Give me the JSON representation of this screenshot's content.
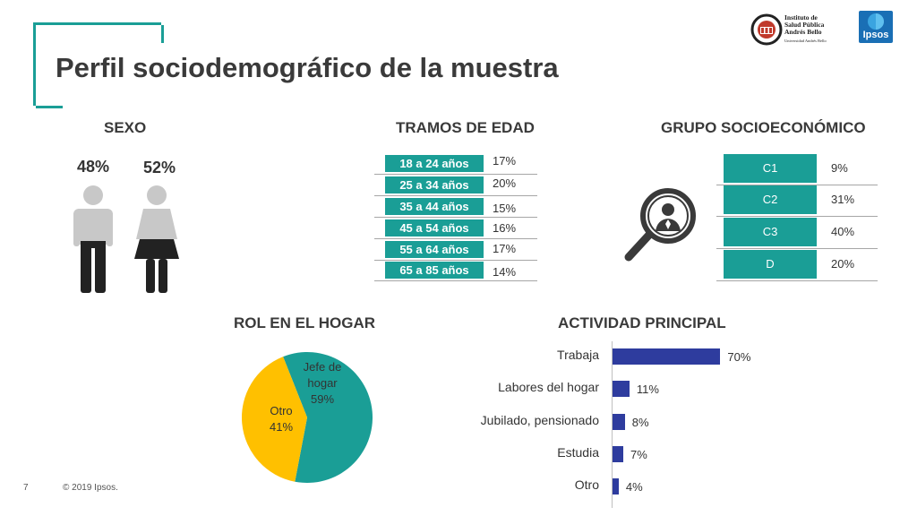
{
  "header": {
    "title": "Perfil sociodemográfico de la muestra",
    "logo_isp_line1": "Instituto de",
    "logo_isp_line2": "Salud Pública",
    "logo_isp_line3": "Andrés Bello",
    "logo_isp_line4": "Universidad Andrés Bello",
    "logo_ipsos": "Ipsos"
  },
  "sexo": {
    "title": "SEXO",
    "male_pct": "48%",
    "female_pct": "52%"
  },
  "edad": {
    "title": "TRAMOS DE EDAD",
    "rows": [
      {
        "label": "18 a 24 años",
        "value": "17%"
      },
      {
        "label": "25 a 34 años",
        "value": "20%"
      },
      {
        "label": "35 a 44 años",
        "value": "15%"
      },
      {
        "label": "45 a 54 años",
        "value": "16%"
      },
      {
        "label": "55 a 64 años",
        "value": "17%"
      },
      {
        "label": "65 a 85 años",
        "value": "14%"
      }
    ]
  },
  "gse": {
    "title": "GRUPO SOCIOECONÓMICO",
    "rows": [
      {
        "label": "C1",
        "value": "9%"
      },
      {
        "label": "C2",
        "value": "31%"
      },
      {
        "label": "C3",
        "value": "40%"
      },
      {
        "label": "D",
        "value": "20%"
      }
    ]
  },
  "rol": {
    "title": "ROL EN EL HOGAR"
  },
  "actividad": {
    "title": "ACTIVIDAD PRINCIPAL"
  },
  "footer": {
    "page_number": "7",
    "copyright": "© 2019 Ipsos."
  },
  "colors": {
    "teal": "#1a9e96",
    "gold": "#ffc000",
    "bar_blue": "#2e3c9e",
    "figure_gray": "#c8c8c8",
    "figure_dark": "#222222"
  },
  "chart_data": [
    {
      "type": "pie",
      "title": "ROL EN EL HOGAR",
      "slices": [
        {
          "label_lines": [
            "Jefe de",
            "hogar"
          ],
          "value": 59,
          "value_label": "59%",
          "color": "#1a9e96"
        },
        {
          "label_lines": [
            "Otro"
          ],
          "value": 41,
          "value_label": "41%",
          "color": "#ffc000"
        }
      ]
    },
    {
      "type": "bar",
      "orientation": "horizontal",
      "title": "ACTIVIDAD PRINCIPAL",
      "categories": [
        "Trabaja",
        "Labores del hogar",
        "Jubilado, pensionado",
        "Estudia",
        "Otro"
      ],
      "values": [
        70,
        11,
        8,
        7,
        4
      ],
      "value_labels": [
        "70%",
        "11%",
        "8%",
        "7%",
        "4%"
      ],
      "xlim": [
        0,
        100
      ],
      "color": "#2e3c9e"
    }
  ]
}
